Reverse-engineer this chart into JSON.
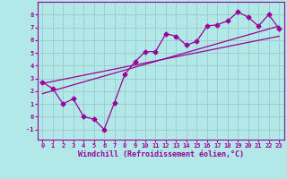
{
  "xlabel": "Windchill (Refroidissement éolien,°C)",
  "background_color": "#b2e8e8",
  "grid_color": "#9ecece",
  "line_color": "#990099",
  "xlim": [
    -0.5,
    23.5
  ],
  "ylim": [
    -1.8,
    9.0
  ],
  "xticks": [
    0,
    1,
    2,
    3,
    4,
    5,
    6,
    7,
    8,
    9,
    10,
    11,
    12,
    13,
    14,
    15,
    16,
    17,
    18,
    19,
    20,
    21,
    22,
    23
  ],
  "yticks": [
    -1,
    0,
    1,
    2,
    3,
    4,
    5,
    6,
    7,
    8
  ],
  "data_x": [
    0,
    1,
    2,
    3,
    4,
    5,
    6,
    7,
    8,
    9,
    10,
    11,
    12,
    13,
    14,
    15,
    16,
    17,
    18,
    19,
    20,
    21,
    22,
    23
  ],
  "data_y": [
    2.7,
    2.2,
    1.0,
    1.4,
    0.0,
    -0.2,
    -1.0,
    1.1,
    3.3,
    4.3,
    5.1,
    5.1,
    6.5,
    6.3,
    5.6,
    5.9,
    7.1,
    7.2,
    7.5,
    8.2,
    7.8,
    7.1,
    8.0,
    6.9
  ],
  "trend1_x": [
    0,
    23
  ],
  "trend1_y": [
    1.8,
    7.1
  ],
  "trend2_x": [
    0,
    23
  ],
  "trend2_y": [
    2.6,
    6.3
  ],
  "marker": "D",
  "markersize": 2.5,
  "linewidth": 0.9,
  "fontsize_ticks": 5.0,
  "fontsize_xlabel": 6.0
}
